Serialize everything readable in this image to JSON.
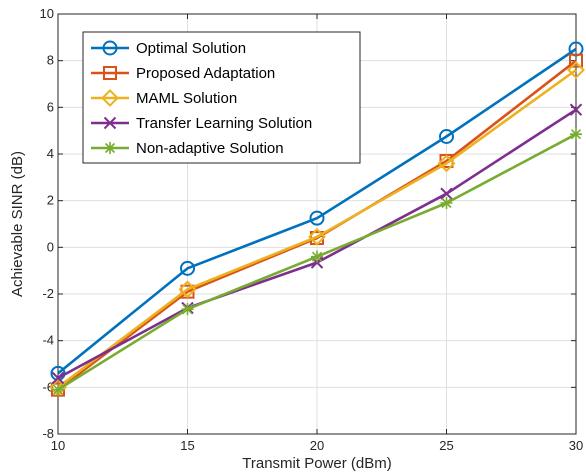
{
  "chart_data": {
    "type": "line",
    "title": "",
    "xlabel": "Transmit Power (dBm)",
    "ylabel": "Achievable SINR (dB)",
    "xlim": [
      10,
      30
    ],
    "ylim": [
      -8,
      10
    ],
    "xticks": [
      10,
      15,
      20,
      25,
      30
    ],
    "yticks": [
      -8,
      -6,
      -4,
      -2,
      0,
      2,
      4,
      6,
      8,
      10
    ],
    "grid": true,
    "legend_position": "top-left",
    "x": [
      10,
      15,
      20,
      25,
      30
    ],
    "series": [
      {
        "name": "Optimal Solution",
        "color": "#0072BD",
        "marker": "circle",
        "values": [
          -5.4,
          -0.9,
          1.25,
          4.75,
          8.5
        ]
      },
      {
        "name": "Proposed Adaptation",
        "color": "#D95319",
        "marker": "square",
        "values": [
          -6.1,
          -1.9,
          0.4,
          3.7,
          8.0
        ]
      },
      {
        "name": "MAML Solution",
        "color": "#EDB120",
        "marker": "diamond",
        "values": [
          -6.0,
          -1.8,
          0.45,
          3.6,
          7.6
        ]
      },
      {
        "name": "Transfer Learning Solution",
        "color": "#7E2F8E",
        "marker": "x",
        "values": [
          -5.6,
          -2.6,
          -0.65,
          2.3,
          5.9
        ]
      },
      {
        "name": "Non-adaptive Solution",
        "color": "#77AC30",
        "marker": "asterisk",
        "values": [
          -6.1,
          -2.65,
          -0.4,
          1.9,
          4.85
        ]
      }
    ]
  }
}
